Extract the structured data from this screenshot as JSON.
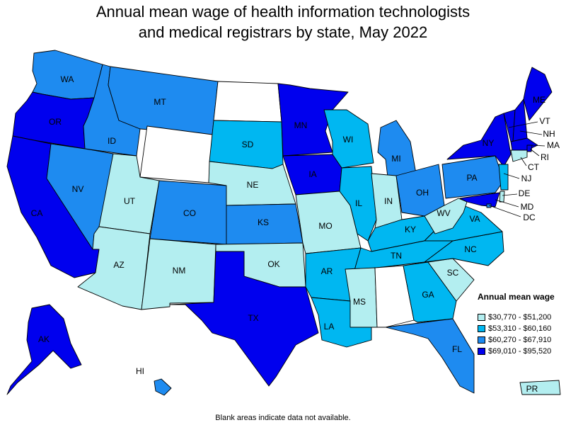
{
  "title_line1": "Annual mean wage of health information technologists",
  "title_line2": "and medical registrars by state, May 2022",
  "legend": {
    "title": "Annual mean wage",
    "bins": [
      {
        "range": "$30,770 - $51,200",
        "color": "#b3eef0"
      },
      {
        "range": "$53,310 - $60,160",
        "color": "#00b7f1"
      },
      {
        "range": "$60,270 - $67,910",
        "color": "#1e8bf0"
      },
      {
        "range": "$69,010 - $95,520",
        "color": "#0000ee"
      }
    ]
  },
  "no_data_color": "#ffffff",
  "footnote": "Blank areas indicate data not available.",
  "states": {
    "WA": {
      "label": "WA",
      "bin": 3
    },
    "OR": {
      "label": "OR",
      "bin": 4
    },
    "CA": {
      "label": "CA",
      "bin": 4
    },
    "ID": {
      "label": "ID",
      "bin": 3
    },
    "NV": {
      "label": "NV",
      "bin": 3
    },
    "MT": {
      "label": "MT",
      "bin": 3
    },
    "WY": {
      "label": "",
      "bin": 0
    },
    "UT": {
      "label": "UT",
      "bin": 1
    },
    "AZ": {
      "label": "AZ",
      "bin": 1
    },
    "CO": {
      "label": "CO",
      "bin": 3
    },
    "NM": {
      "label": "NM",
      "bin": 1
    },
    "ND": {
      "label": "",
      "bin": 0
    },
    "SD": {
      "label": "SD",
      "bin": 2
    },
    "NE": {
      "label": "NE",
      "bin": 1
    },
    "KS": {
      "label": "KS",
      "bin": 3
    },
    "OK": {
      "label": "OK",
      "bin": 1
    },
    "TX": {
      "label": "TX",
      "bin": 4
    },
    "MN": {
      "label": "MN",
      "bin": 4
    },
    "IA": {
      "label": "IA",
      "bin": 4
    },
    "MO": {
      "label": "MO",
      "bin": 1
    },
    "AR": {
      "label": "AR",
      "bin": 2
    },
    "LA": {
      "label": "LA",
      "bin": 2
    },
    "WI": {
      "label": "WI",
      "bin": 2
    },
    "IL": {
      "label": "IL",
      "bin": 2
    },
    "MI": {
      "label": "MI",
      "bin": 3
    },
    "IN": {
      "label": "IN",
      "bin": 1
    },
    "OH": {
      "label": "OH",
      "bin": 3
    },
    "KY": {
      "label": "KY",
      "bin": 2
    },
    "TN": {
      "label": "TN",
      "bin": 2
    },
    "MS": {
      "label": "MS",
      "bin": 1
    },
    "AL": {
      "label": "",
      "bin": 0
    },
    "GA": {
      "label": "GA",
      "bin": 2
    },
    "FL": {
      "label": "FL",
      "bin": 3
    },
    "SC": {
      "label": "SC",
      "bin": 1
    },
    "NC": {
      "label": "NC",
      "bin": 2
    },
    "VA": {
      "label": "VA",
      "bin": 2
    },
    "WV": {
      "label": "WV",
      "bin": 1
    },
    "PA": {
      "label": "PA",
      "bin": 3
    },
    "NY": {
      "label": "NY",
      "bin": 4
    },
    "VT": {
      "label": "VT",
      "bin": 4
    },
    "NH": {
      "label": "NH",
      "bin": 4
    },
    "ME": {
      "label": "ME",
      "bin": 4
    },
    "MA": {
      "label": "MA",
      "bin": 4
    },
    "RI": {
      "label": "RI",
      "bin": 4
    },
    "CT": {
      "label": "CT",
      "bin": 1
    },
    "NJ": {
      "label": "NJ",
      "bin": 2
    },
    "DE": {
      "label": "DE",
      "bin": 1
    },
    "MD": {
      "label": "MD",
      "bin": 4
    },
    "DC": {
      "label": "DC",
      "bin": 3
    },
    "AK": {
      "label": "AK",
      "bin": 4
    },
    "HI": {
      "label": "HI",
      "bin": 3
    },
    "PR": {
      "label": "PR",
      "bin": 1
    }
  }
}
